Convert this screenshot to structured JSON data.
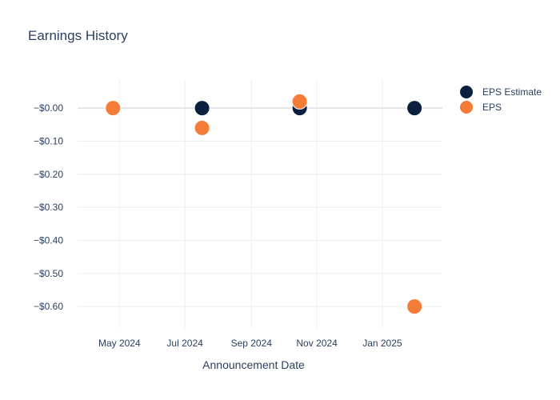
{
  "chart_data": {
    "type": "scatter",
    "title": "Earnings History",
    "xlabel": "Announcement Date",
    "ylabel": "",
    "x_ticks": [
      "May 2024",
      "Jul 2024",
      "Sep 2024",
      "Nov 2024",
      "Jan 2025"
    ],
    "y_ticks": [
      "−$0.00",
      "−$0.10",
      "−$0.20",
      "−$0.30",
      "−$0.40",
      "−$0.50",
      "−$0.60"
    ],
    "y_tick_values": [
      0,
      -0.1,
      -0.2,
      -0.3,
      -0.4,
      -0.5,
      -0.6
    ],
    "ylim": [
      -0.665,
      0.085
    ],
    "xlim": [
      "2024-03-23",
      "2025-02-26"
    ],
    "grid": true,
    "legend_position": "right",
    "series": [
      {
        "name": "EPS Estimate",
        "color": "#0b1f3f",
        "points": [
          {
            "date": "2024-04-25",
            "value": 0.0
          },
          {
            "date": "2024-07-17",
            "value": 0.0
          },
          {
            "date": "2024-10-16",
            "value": 0.0
          },
          {
            "date": "2025-01-31",
            "value": 0.0
          }
        ]
      },
      {
        "name": "EPS",
        "color": "#f47c37",
        "points": [
          {
            "date": "2024-04-25",
            "value": 0.0
          },
          {
            "date": "2024-07-17",
            "value": -0.06
          },
          {
            "date": "2024-10-16",
            "value": 0.02
          },
          {
            "date": "2025-01-31",
            "value": -0.6
          }
        ]
      }
    ]
  }
}
